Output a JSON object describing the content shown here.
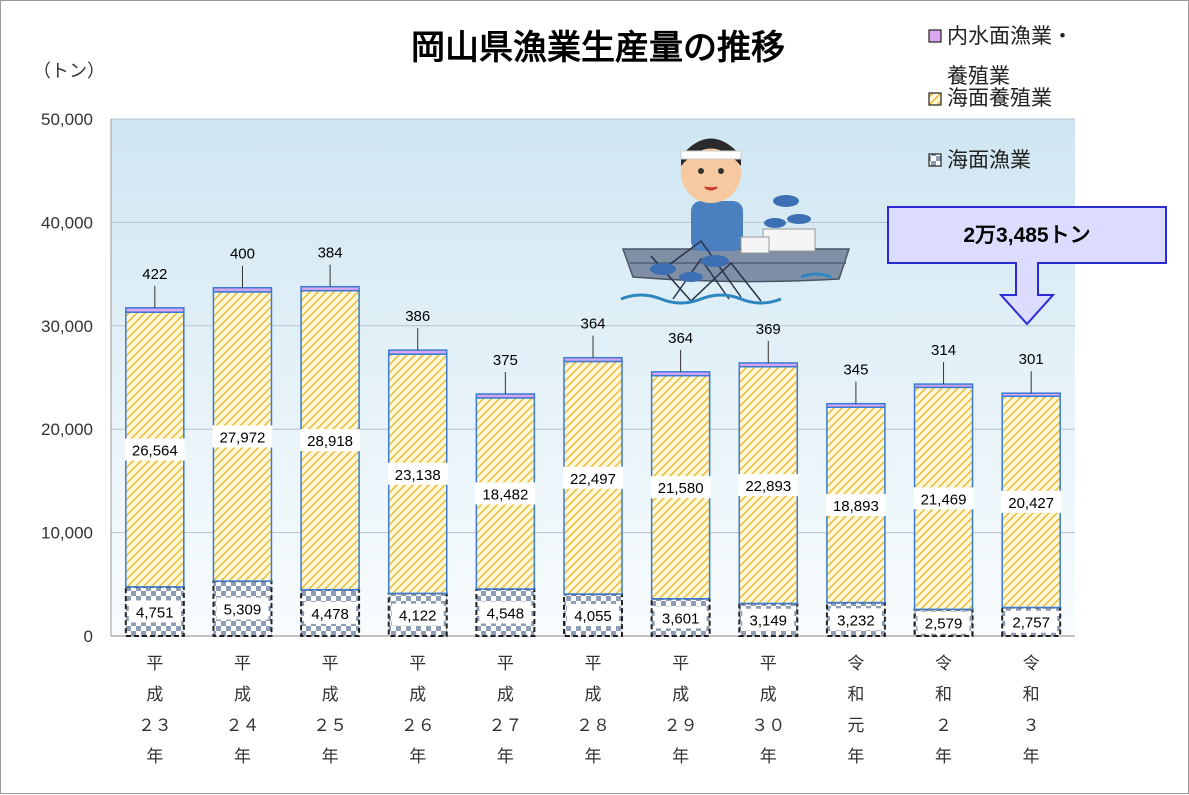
{
  "chart_data": {
    "type": "bar",
    "stacked": true,
    "title": "岡山県漁業生産量の推移",
    "unit_label": "（トン）",
    "categories": [
      [
        "平",
        "成",
        "２３",
        "年"
      ],
      [
        "平",
        "成",
        "２４",
        "年"
      ],
      [
        "平",
        "成",
        "２５",
        "年"
      ],
      [
        "平",
        "成",
        "２６",
        "年"
      ],
      [
        "平",
        "成",
        "２７",
        "年"
      ],
      [
        "平",
        "成",
        "２８",
        "年"
      ],
      [
        "平",
        "成",
        "２９",
        "年"
      ],
      [
        "平",
        "成",
        "３０",
        "年"
      ],
      [
        "令",
        "和",
        "元",
        "年"
      ],
      [
        "令",
        "和",
        "２",
        "年"
      ],
      [
        "令",
        "和",
        "３",
        "年"
      ]
    ],
    "series": [
      {
        "name": "海面漁業",
        "values": [
          4751,
          5309,
          4478,
          4122,
          4548,
          4055,
          3601,
          3149,
          3232,
          2579,
          2757
        ],
        "labels": [
          "4,751",
          "5,309",
          "4,478",
          "4,122",
          "4,548",
          "4,055",
          "3,601",
          "3,149",
          "3,232",
          "2,579",
          "2,757"
        ]
      },
      {
        "name": "海面養殖業",
        "values": [
          26564,
          27972,
          28918,
          23138,
          18482,
          22497,
          21580,
          22893,
          18893,
          21469,
          20427
        ],
        "labels": [
          "26,564",
          "27,972",
          "28,918",
          "23,138",
          "18,482",
          "22,497",
          "21,580",
          "22,893",
          "18,893",
          "21,469",
          "20,427"
        ]
      },
      {
        "name": "内水面漁業・養殖業",
        "values": [
          422,
          400,
          384,
          386,
          375,
          364,
          364,
          369,
          345,
          314,
          301
        ],
        "labels": [
          "422",
          "400",
          "384",
          "386",
          "375",
          "364",
          "364",
          "369",
          "345",
          "314",
          "301"
        ]
      }
    ],
    "legend": {
      "position": "top-right",
      "items": [
        "内水面漁業・",
        "養殖業",
        "海面養殖業",
        "海面漁業"
      ]
    },
    "ylim": [
      0,
      50000
    ],
    "yticks": [
      0,
      10000,
      20000,
      30000,
      40000,
      50000
    ],
    "ytick_labels": [
      "0",
      "10,000",
      "20,000",
      "30,000",
      "40,000",
      "50,000"
    ],
    "grid": true,
    "annotation": {
      "text": "2万3,485トン"
    },
    "colors": {
      "inland": "#d9a6f0",
      "aquaculture": "#f2d36b",
      "marine": "#8e9cb4",
      "bar_border": "#3a7bd5",
      "callout_bg": "#dcdcff",
      "callout_border": "#2b2bd6"
    }
  }
}
